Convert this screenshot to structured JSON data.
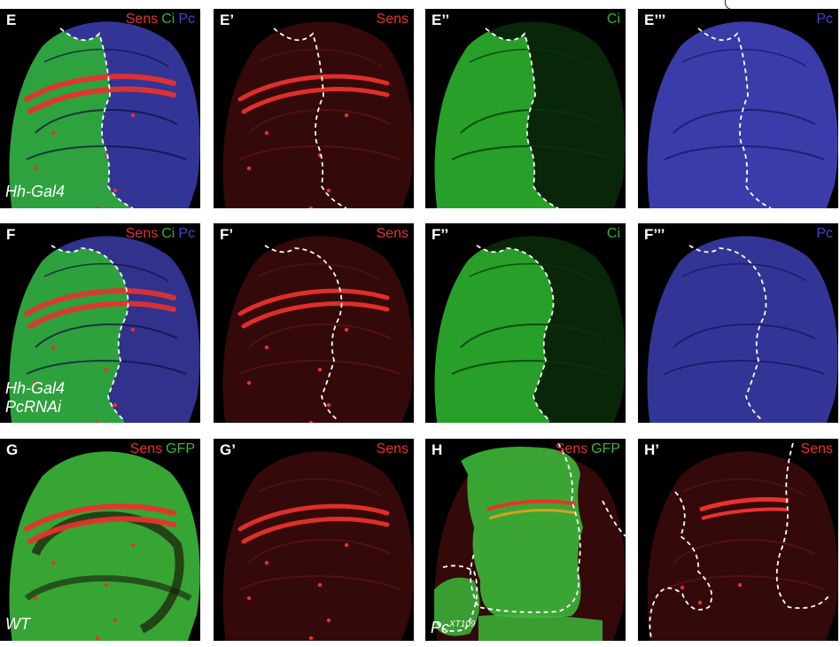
{
  "colors": {
    "sens": "#e8322c",
    "ci": "#2db52f",
    "gfp": "#3cb73a",
    "pc": "#4447c8",
    "label": "#ffffff"
  },
  "panels": [
    {
      "id": "E",
      "label": "E",
      "channels": [
        {
          "text": "Sens",
          "c": "sens"
        },
        {
          "text": "Ci",
          "c": "ci"
        },
        {
          "text": "Pc",
          "c": "pc"
        }
      ]
    },
    {
      "id": "E1",
      "label": "E’",
      "channels": [
        {
          "text": "Sens",
          "c": "sens"
        }
      ]
    },
    {
      "id": "E2",
      "label": "E’’",
      "channels": [
        {
          "text": "Ci",
          "c": "ci"
        }
      ]
    },
    {
      "id": "E3",
      "label": "E’’’",
      "channels": [
        {
          "text": "Pc",
          "c": "pc"
        }
      ]
    },
    {
      "id": "F",
      "label": "F",
      "channels": [
        {
          "text": "Sens",
          "c": "sens"
        },
        {
          "text": "Ci",
          "c": "ci"
        },
        {
          "text": "Pc",
          "c": "pc"
        }
      ]
    },
    {
      "id": "F1",
      "label": "F’",
      "channels": [
        {
          "text": "Sens",
          "c": "sens"
        }
      ]
    },
    {
      "id": "F2",
      "label": "F’’",
      "channels": [
        {
          "text": "Ci",
          "c": "ci"
        }
      ]
    },
    {
      "id": "F3",
      "label": "F’’’",
      "channels": [
        {
          "text": "Pc",
          "c": "pc"
        }
      ]
    },
    {
      "id": "G",
      "label": "G",
      "channels": [
        {
          "text": "Sens",
          "c": "sens"
        },
        {
          "text": "GFP",
          "c": "gfp"
        }
      ]
    },
    {
      "id": "G1",
      "label": "G’",
      "channels": [
        {
          "text": "Sens",
          "c": "sens"
        }
      ]
    },
    {
      "id": "H",
      "label": "H",
      "channels": [
        {
          "text": "Sens",
          "c": "sens"
        },
        {
          "text": "GFP",
          "c": "gfp"
        }
      ]
    },
    {
      "id": "H1",
      "label": "H’",
      "channels": [
        {
          "text": "Sens",
          "c": "sens"
        }
      ]
    }
  ],
  "genotypes": {
    "e_row": "Hh-Gal4",
    "f_row_line1": "Hh-Gal4",
    "f_row_line2": "PcRNAi",
    "g": "WT",
    "h_base": "Pc",
    "h_sup": "XT109"
  }
}
